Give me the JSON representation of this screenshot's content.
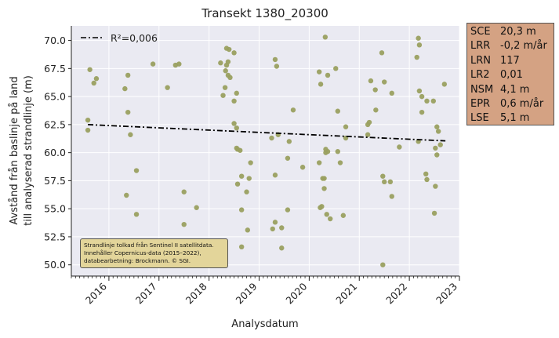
{
  "chart_data": {
    "type": "scatter",
    "title": "Transekt 1380_20300",
    "xlabel": "Analysdatum",
    "ylabel": [
      "Avstånd från baslinje på land",
      "till analyserad strandlinje (m)"
    ],
    "xlim": [
      2015.25,
      2023.0
    ],
    "ylim": [
      49.0,
      71.3
    ],
    "x_ticks": [
      2016,
      2017,
      2018,
      2019,
      2020,
      2021,
      2022,
      2023
    ],
    "x_tick_labels": [
      "2016",
      "2017",
      "2018",
      "2019",
      "2020",
      "2021",
      "2022",
      "2023"
    ],
    "y_ticks": [
      50,
      52.5,
      55,
      57.5,
      60,
      62.5,
      65,
      67.5,
      70
    ],
    "y_tick_labels": [
      "50.0",
      "52.5",
      "55.0",
      "57.5",
      "60.0",
      "62.5",
      "65.0",
      "67.5",
      "70.0"
    ],
    "grid": true,
    "legend": {
      "placement": "top-left",
      "entries": [
        "R²=0,006"
      ]
    },
    "series": [
      {
        "name": "",
        "kind": "points",
        "color": "#9aa060",
        "points": [
          [
            2015.62,
            67.4
          ],
          [
            2015.7,
            66.2
          ],
          [
            2015.75,
            66.6
          ],
          [
            2015.58,
            62.9
          ],
          [
            2015.58,
            62.0
          ],
          [
            2016.32,
            65.7
          ],
          [
            2016.38,
            66.9
          ],
          [
            2016.38,
            63.6
          ],
          [
            2016.43,
            61.6
          ],
          [
            2016.35,
            56.2
          ],
          [
            2016.55,
            58.4
          ],
          [
            2016.55,
            54.5
          ],
          [
            2016.88,
            67.9
          ],
          [
            2017.17,
            65.8
          ],
          [
            2017.33,
            67.8
          ],
          [
            2017.4,
            67.9
          ],
          [
            2017.5,
            56.5
          ],
          [
            2017.5,
            53.6
          ],
          [
            2017.75,
            55.1
          ],
          [
            2018.23,
            68.0
          ],
          [
            2018.28,
            65.1
          ],
          [
            2018.32,
            65.8
          ],
          [
            2018.35,
            69.3
          ],
          [
            2018.4,
            69.2
          ],
          [
            2018.35,
            67.8
          ],
          [
            2018.38,
            68.1
          ],
          [
            2018.33,
            67.3
          ],
          [
            2018.38,
            66.9
          ],
          [
            2018.42,
            66.7
          ],
          [
            2018.5,
            68.9
          ],
          [
            2018.55,
            65.3
          ],
          [
            2018.5,
            64.6
          ],
          [
            2018.5,
            62.6
          ],
          [
            2018.55,
            62.2
          ],
          [
            2018.55,
            60.4
          ],
          [
            2018.62,
            60.2
          ],
          [
            2018.57,
            60.3
          ],
          [
            2018.57,
            57.2
          ],
          [
            2018.65,
            57.9
          ],
          [
            2018.65,
            54.9
          ],
          [
            2018.75,
            56.5
          ],
          [
            2018.8,
            57.7
          ],
          [
            2018.77,
            53.1
          ],
          [
            2018.83,
            59.1
          ],
          [
            2018.65,
            51.6
          ],
          [
            2019.25,
            61.3
          ],
          [
            2019.32,
            68.3
          ],
          [
            2019.35,
            67.7
          ],
          [
            2019.38,
            61.6
          ],
          [
            2019.32,
            58.0
          ],
          [
            2019.27,
            53.2
          ],
          [
            2019.32,
            53.8
          ],
          [
            2019.45,
            53.3
          ],
          [
            2019.45,
            51.5
          ],
          [
            2019.57,
            59.5
          ],
          [
            2019.6,
            61.0
          ],
          [
            2019.68,
            63.8
          ],
          [
            2019.57,
            54.9
          ],
          [
            2019.87,
            58.7
          ],
          [
            2020.2,
            67.2
          ],
          [
            2020.32,
            70.3
          ],
          [
            2020.23,
            66.1
          ],
          [
            2020.37,
            66.9
          ],
          [
            2020.53,
            67.5
          ],
          [
            2020.2,
            59.1
          ],
          [
            2020.22,
            55.1
          ],
          [
            2020.25,
            55.2
          ],
          [
            2020.27,
            57.7
          ],
          [
            2020.3,
            57.7
          ],
          [
            2020.3,
            56.8
          ],
          [
            2020.33,
            60.3
          ],
          [
            2020.33,
            60.0
          ],
          [
            2020.37,
            60.1
          ],
          [
            2020.35,
            54.5
          ],
          [
            2020.42,
            54.1
          ],
          [
            2020.57,
            63.7
          ],
          [
            2020.57,
            60.1
          ],
          [
            2020.62,
            59.1
          ],
          [
            2020.68,
            54.4
          ],
          [
            2020.73,
            62.3
          ],
          [
            2020.73,
            61.3
          ],
          [
            2021.17,
            62.5
          ],
          [
            2021.2,
            62.7
          ],
          [
            2021.17,
            61.6
          ],
          [
            2021.23,
            66.4
          ],
          [
            2021.32,
            65.6
          ],
          [
            2021.33,
            63.8
          ],
          [
            2021.45,
            68.9
          ],
          [
            2021.5,
            66.3
          ],
          [
            2021.47,
            57.9
          ],
          [
            2021.5,
            57.4
          ],
          [
            2021.62,
            57.4
          ],
          [
            2021.65,
            56.1
          ],
          [
            2021.65,
            65.3
          ],
          [
            2021.8,
            60.5
          ],
          [
            2021.47,
            50.0
          ],
          [
            2022.18,
            70.2
          ],
          [
            2022.2,
            69.6
          ],
          [
            2022.15,
            68.5
          ],
          [
            2022.2,
            65.5
          ],
          [
            2022.25,
            65.0
          ],
          [
            2022.25,
            63.6
          ],
          [
            2022.18,
            61.0
          ],
          [
            2022.35,
            64.6
          ],
          [
            2022.33,
            58.1
          ],
          [
            2022.35,
            57.6
          ],
          [
            2022.48,
            64.6
          ],
          [
            2022.52,
            60.4
          ],
          [
            2022.55,
            62.3
          ],
          [
            2022.58,
            61.9
          ],
          [
            2022.62,
            60.7
          ],
          [
            2022.7,
            66.1
          ],
          [
            2022.55,
            59.8
          ],
          [
            2022.52,
            57.0
          ],
          [
            2022.5,
            54.6
          ]
        ]
      },
      {
        "name": "R²=0,006",
        "kind": "trend",
        "color": "#000000",
        "line_style": "dash-dot",
        "x": [
          2015.58,
          2022.72
        ],
        "y": [
          62.5,
          61.05
        ]
      }
    ],
    "stats": [
      {
        "key": "SCE",
        "value": "20,3 m"
      },
      {
        "key": "LRR",
        "value": "-0,2 m/år"
      },
      {
        "key": "LRN",
        "value": "117"
      },
      {
        "key": "LR2",
        "value": "0,01"
      },
      {
        "key": "NSM",
        "value": "4,1 m"
      },
      {
        "key": "EPR",
        "value": "0,6 m/år"
      },
      {
        "key": "LSE",
        "value": "5,1 m"
      }
    ],
    "annotation_lines": [
      "Strandlinje tolkad från Sentinel II satellitdata.",
      "Innehåller Copernicus-data (2015–2022),",
      "databearbetning: Brockmann. © SGI."
    ],
    "colors": {
      "plot_background": "#eaeaf2",
      "stats_box": "#d4a283",
      "annotation_box": "#e3d59a"
    }
  }
}
